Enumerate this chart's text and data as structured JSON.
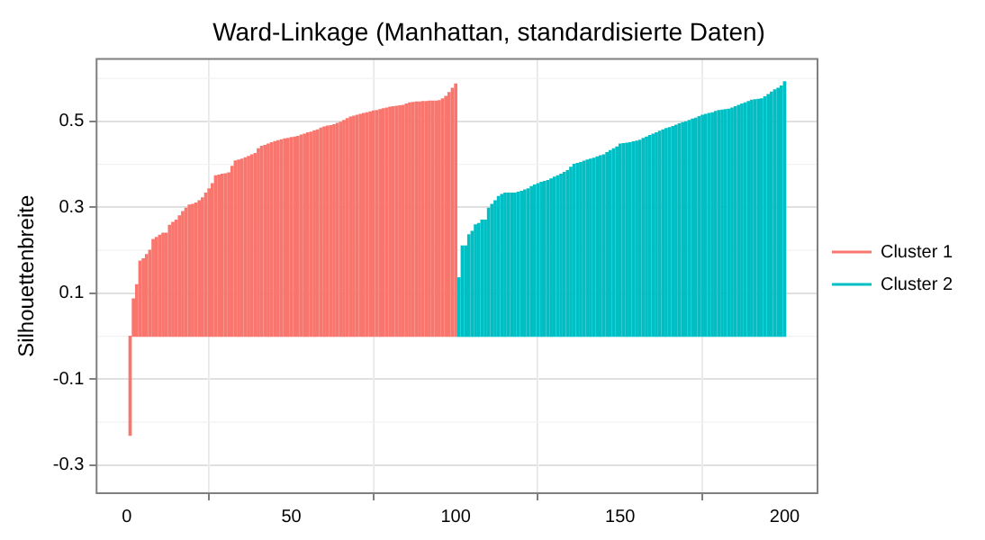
{
  "chart_data": {
    "type": "bar",
    "title": "Ward-Linkage (Manhattan, standardisierte Daten)",
    "ylabel": "Silhouettenbreite",
    "xlim": [
      -9.2,
      210
    ],
    "xticks": [
      0,
      50,
      100,
      150,
      200
    ],
    "ylim": [
      -0.365,
      0.645
    ],
    "yticks": [
      -0.3,
      -0.1,
      0.1,
      0.3,
      0.5
    ],
    "grid": true,
    "legend": "right",
    "series": [
      {
        "name": "Cluster 1",
        "color": "#f8766d",
        "x": [
          1,
          2,
          3,
          4,
          5,
          6,
          7,
          8,
          9,
          10,
          11,
          12,
          13,
          14,
          15,
          16,
          17,
          18,
          19,
          20,
          21,
          22,
          23,
          24,
          25,
          26,
          27,
          28,
          29,
          30,
          31,
          32,
          33,
          34,
          35,
          36,
          37,
          38,
          39,
          40,
          41,
          42,
          43,
          44,
          45,
          46,
          47,
          48,
          49,
          50,
          51,
          52,
          53,
          54,
          55,
          56,
          57,
          58,
          59,
          60,
          61,
          62,
          63,
          64,
          65,
          66,
          67,
          68,
          69,
          70,
          71,
          72,
          73,
          74,
          75,
          76,
          77,
          78,
          79,
          80,
          81,
          82,
          83,
          84,
          85,
          86,
          87,
          88,
          89,
          90,
          91,
          92,
          93,
          94,
          95,
          96,
          97,
          98,
          99,
          100
        ],
        "values": [
          -0.23,
          0.087,
          0.12,
          0.175,
          0.18,
          0.19,
          0.2,
          0.225,
          0.23,
          0.235,
          0.24,
          0.24,
          0.258,
          0.265,
          0.27,
          0.28,
          0.29,
          0.298,
          0.305,
          0.307,
          0.31,
          0.315,
          0.322,
          0.333,
          0.343,
          0.355,
          0.373,
          0.375,
          0.377,
          0.378,
          0.38,
          0.395,
          0.408,
          0.41,
          0.412,
          0.415,
          0.418,
          0.422,
          0.425,
          0.436,
          0.442,
          0.444,
          0.447,
          0.45,
          0.453,
          0.455,
          0.457,
          0.459,
          0.46,
          0.462,
          0.463,
          0.465,
          0.468,
          0.47,
          0.473,
          0.475,
          0.478,
          0.48,
          0.484,
          0.487,
          0.489,
          0.49,
          0.492,
          0.495,
          0.498,
          0.502,
          0.506,
          0.51,
          0.512,
          0.514,
          0.516,
          0.518,
          0.52,
          0.522,
          0.524,
          0.525,
          0.527,
          0.529,
          0.531,
          0.533,
          0.534,
          0.535,
          0.536,
          0.537,
          0.54,
          0.543,
          0.544,
          0.545,
          0.545,
          0.546,
          0.546,
          0.547,
          0.547,
          0.547,
          0.548,
          0.552,
          0.558,
          0.567,
          0.577,
          0.587
        ]
      },
      {
        "name": "Cluster 2",
        "color": "#00bfc4",
        "x": [
          101,
          102,
          103,
          104,
          105,
          106,
          107,
          108,
          109,
          110,
          111,
          112,
          113,
          114,
          115,
          116,
          117,
          118,
          119,
          120,
          121,
          122,
          123,
          124,
          125,
          126,
          127,
          128,
          129,
          130,
          131,
          132,
          133,
          134,
          135,
          136,
          137,
          138,
          139,
          140,
          141,
          142,
          143,
          144,
          145,
          146,
          147,
          148,
          149,
          150,
          151,
          152,
          153,
          154,
          155,
          156,
          157,
          158,
          159,
          160,
          161,
          162,
          163,
          164,
          165,
          166,
          167,
          168,
          169,
          170,
          171,
          172,
          173,
          174,
          175,
          176,
          177,
          178,
          179,
          180,
          181,
          182,
          183,
          184,
          185,
          186,
          187,
          188,
          189,
          190,
          191,
          192,
          193,
          194,
          195,
          196,
          197,
          198,
          199,
          200
        ],
        "values": [
          0.136,
          0.21,
          0.21,
          0.236,
          0.244,
          0.259,
          0.262,
          0.27,
          0.27,
          0.298,
          0.307,
          0.315,
          0.325,
          0.33,
          0.333,
          0.333,
          0.333,
          0.333,
          0.335,
          0.337,
          0.34,
          0.343,
          0.348,
          0.352,
          0.355,
          0.358,
          0.36,
          0.362,
          0.366,
          0.37,
          0.373,
          0.377,
          0.381,
          0.385,
          0.393,
          0.4,
          0.402,
          0.404,
          0.407,
          0.41,
          0.412,
          0.414,
          0.417,
          0.42,
          0.422,
          0.427,
          0.432,
          0.436,
          0.44,
          0.447,
          0.448,
          0.449,
          0.45,
          0.452,
          0.454,
          0.456,
          0.46,
          0.463,
          0.467,
          0.47,
          0.473,
          0.477,
          0.48,
          0.483,
          0.485,
          0.488,
          0.491,
          0.494,
          0.497,
          0.499,
          0.502,
          0.505,
          0.507,
          0.511,
          0.514,
          0.516,
          0.518,
          0.52,
          0.523,
          0.525,
          0.526,
          0.527,
          0.528,
          0.531,
          0.534,
          0.537,
          0.54,
          0.543,
          0.546,
          0.549,
          0.55,
          0.551,
          0.552,
          0.557,
          0.562,
          0.568,
          0.573,
          0.577,
          0.582,
          0.592
        ]
      }
    ]
  }
}
